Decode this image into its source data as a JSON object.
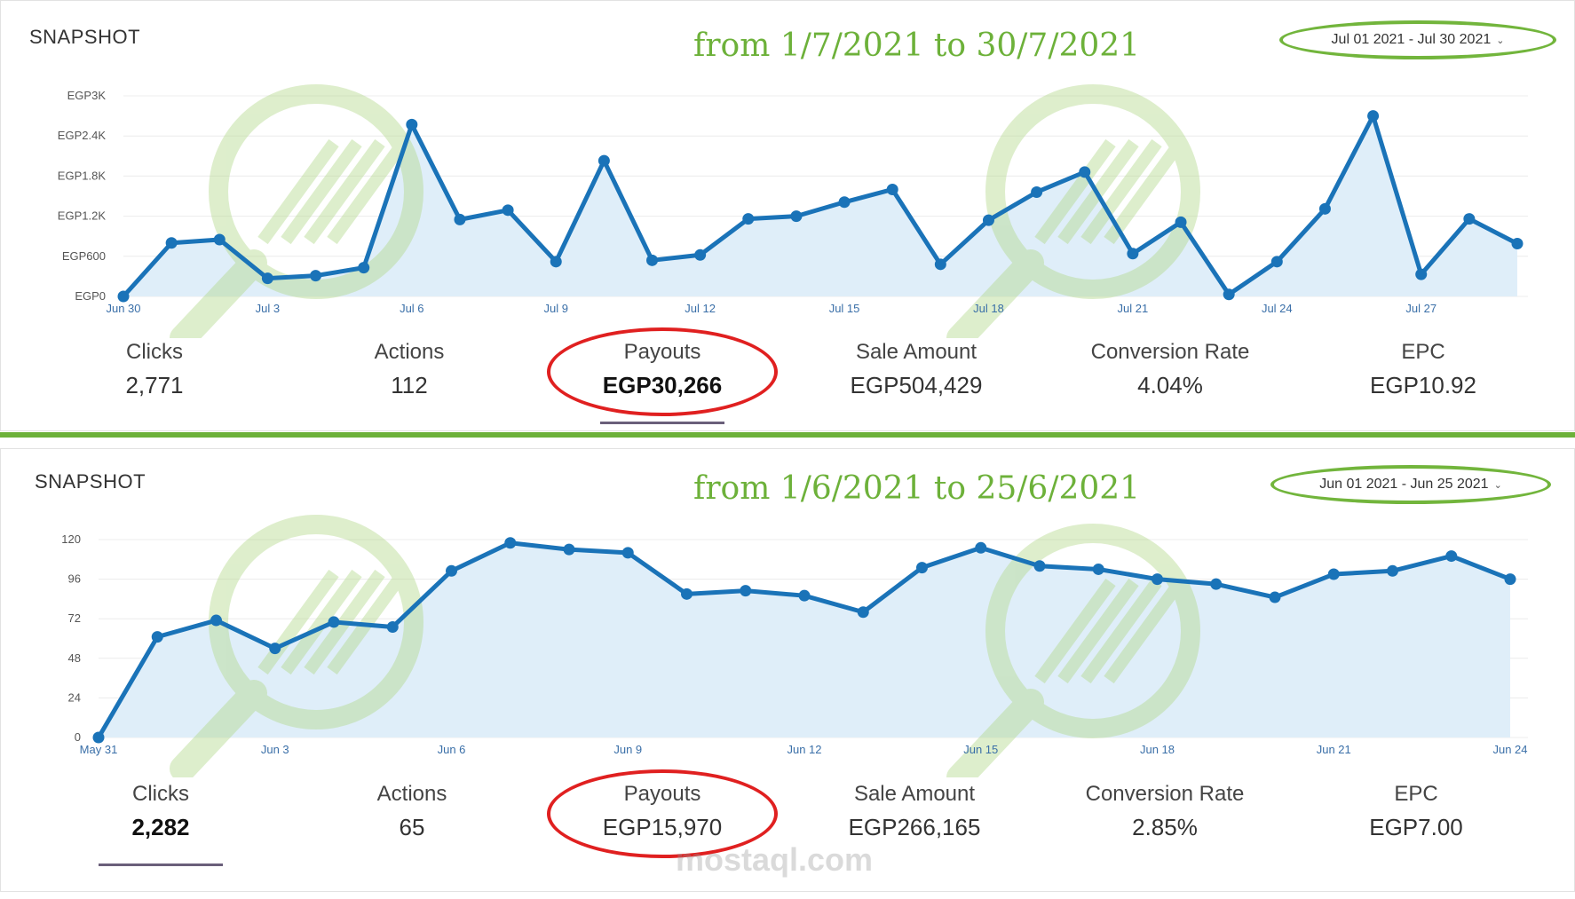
{
  "top": {
    "title": "SNAPSHOT",
    "annotation": "from 1/7/2021 to 30/7/2021",
    "date_range": "Jul 01 2021 - Jul 30 2021",
    "metrics": [
      {
        "label": "Clicks",
        "value": "2,771"
      },
      {
        "label": "Actions",
        "value": "112"
      },
      {
        "label": "Payouts",
        "value": "EGP30,266"
      },
      {
        "label": "Sale Amount",
        "value": "EGP504,429"
      },
      {
        "label": "Conversion Rate",
        "value": "4.04%"
      },
      {
        "label": "EPC",
        "value": "EGP10.92"
      }
    ]
  },
  "bottom": {
    "title": "SNAPSHOT",
    "annotation": "from 1/6/2021 to 25/6/2021",
    "date_range": "Jun 01 2021 - Jun 25 2021",
    "metrics": [
      {
        "label": "Clicks",
        "value": "2,282"
      },
      {
        "label": "Actions",
        "value": "65"
      },
      {
        "label": "Payouts",
        "value": "EGP15,970"
      },
      {
        "label": "Sale Amount",
        "value": "EGP266,165"
      },
      {
        "label": "Conversion Rate",
        "value": "2.85%"
      },
      {
        "label": "EPC",
        "value": "EGP7.00"
      }
    ]
  },
  "watermark": "mostaql.com",
  "colors": {
    "line": "#1a73b8",
    "fill": "#dfeef9",
    "accent": "#6db13a",
    "highlight": "#e02020"
  },
  "chart_data": [
    {
      "type": "area",
      "ytick_labels": [
        "EGP0",
        "EGP600",
        "EGP1.2K",
        "EGP1.8K",
        "EGP2.4K",
        "EGP3K"
      ],
      "yticks": [
        0,
        600,
        1200,
        1800,
        2400,
        3000
      ],
      "ylim": [
        0,
        3000
      ],
      "xtick_labels": [
        "Jun 30",
        "Jul 3",
        "Jul 6",
        "Jul 9",
        "Jul 12",
        "Jul 15",
        "Jul 18",
        "Jul 21",
        "Jul 24",
        "Jul 27"
      ],
      "xtick_indices": [
        0,
        3,
        6,
        9,
        12,
        15,
        18,
        21,
        24,
        27
      ],
      "values": [
        0,
        800,
        850,
        270,
        310,
        430,
        2570,
        1150,
        1290,
        520,
        2030,
        540,
        620,
        1160,
        1200,
        1410,
        1600,
        480,
        1140,
        1560,
        1860,
        640,
        1110,
        30,
        520,
        1310,
        2700,
        330,
        1160,
        790
      ],
      "grid": true
    },
    {
      "type": "area",
      "ytick_labels": [
        "0",
        "24",
        "48",
        "72",
        "96",
        "120"
      ],
      "yticks": [
        0,
        24,
        48,
        72,
        96,
        120
      ],
      "ylim": [
        0,
        120
      ],
      "xtick_labels": [
        "May 31",
        "Jun 3",
        "Jun 6",
        "Jun 9",
        "Jun 12",
        "Jun 15",
        "Jun 18",
        "Jun 21",
        "Jun 24"
      ],
      "xtick_indices": [
        0,
        3,
        6,
        9,
        12,
        15,
        18,
        21,
        24
      ],
      "values": [
        0,
        61,
        71,
        54,
        70,
        67,
        101,
        118,
        114,
        112,
        87,
        89,
        86,
        76,
        103,
        115,
        104,
        102,
        96,
        93,
        85,
        99,
        101,
        110,
        96
      ],
      "grid": true
    }
  ]
}
